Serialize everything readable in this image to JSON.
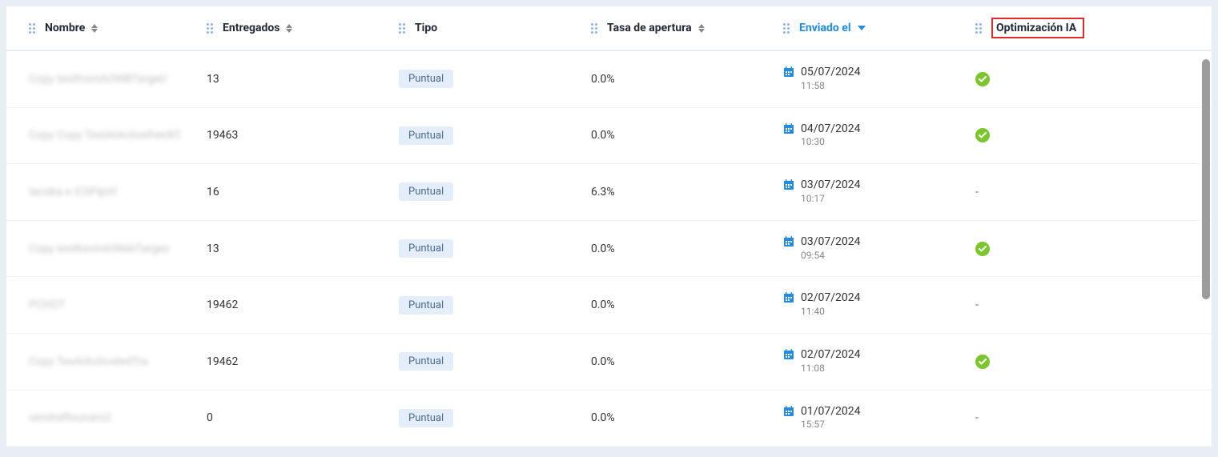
{
  "columns": {
    "name": {
      "label": "Nombre",
      "sortable": true,
      "active": false
    },
    "entreg": {
      "label": "Entregados",
      "sortable": true,
      "active": false
    },
    "tipo": {
      "label": "Tipo",
      "sortable": false,
      "active": false
    },
    "tasa": {
      "label": "Tasa de apertura",
      "sortable": true,
      "active": false
    },
    "enviado": {
      "label": "Enviado el",
      "sortable": true,
      "active": true,
      "direction": "desc"
    },
    "opt": {
      "label": "Optimización IA",
      "sortable": false,
      "active": false,
      "highlighted": true
    }
  },
  "rows": [
    {
      "name": "Copy testfromAOWBTargeU",
      "entreg": "13",
      "tipo": "Puntual",
      "tasa": "0.0%",
      "date": "05/07/2024",
      "time": "11:58",
      "opt": "check"
    },
    {
      "name": "Copy Copy TestAIActivefreeXC",
      "entreg": "19463",
      "tipo": "Puntual",
      "tasa": "0.0%",
      "date": "04/07/2024",
      "time": "10:30",
      "opt": "check"
    },
    {
      "name": "Iacidra e iCSFIpVI",
      "entreg": "16",
      "tipo": "Puntual",
      "tasa": "6.3%",
      "date": "03/07/2024",
      "time": "10:17",
      "opt": "-"
    },
    {
      "name": "Copy testKevinAIWebTarges",
      "entreg": "13",
      "tipo": "Puntual",
      "tasa": "0.0%",
      "date": "03/07/2024",
      "time": "09:54",
      "opt": "check"
    },
    {
      "name": "PCHOT",
      "entreg": "19462",
      "tipo": "Puntual",
      "tasa": "0.0%",
      "date": "02/07/2024",
      "time": "11:40",
      "opt": "-"
    },
    {
      "name": "Copy TesAIActivatedTra",
      "entreg": "19462",
      "tipo": "Puntual",
      "tasa": "0.0%",
      "date": "02/07/2024",
      "time": "11:08",
      "opt": "check"
    },
    {
      "name": "sendraftounars2",
      "entreg": "0",
      "tipo": "Puntual",
      "tasa": "0.0%",
      "date": "01/07/2024",
      "time": "15:57",
      "opt": "-"
    }
  ],
  "colors": {
    "page_bg": "#e9eef4",
    "table_bg": "#ffffff",
    "header_text": "#232a36",
    "active_header": "#1f8ce6",
    "highlight_border": "#e02b2b",
    "badge_bg": "#e4eefb",
    "badge_text": "#4b6a8a",
    "check_green": "#7bc62d",
    "drag_handle": "#8fb4e8",
    "time_text": "#888888",
    "scrollbar": "#9c9c9c"
  }
}
